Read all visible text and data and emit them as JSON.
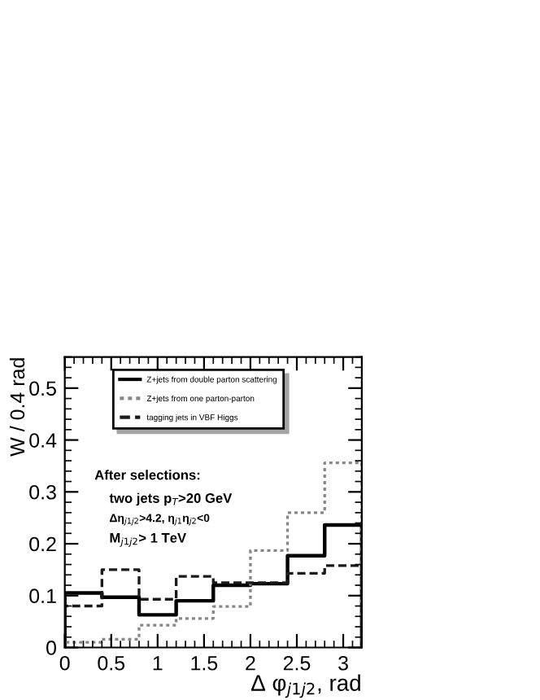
{
  "chart_data": {
    "type": "histogram",
    "xlabel": "Δ φ$_{j1j2}$, rad",
    "ylabel": "W / 0.4 rad",
    "bins": [
      0,
      0.4,
      0.8,
      1.2,
      1.6,
      2.0,
      2.4,
      2.8,
      3.2
    ],
    "series": [
      {
        "name": "Z+jets from double parton scattering",
        "color": "#000000",
        "line_style": "solid",
        "values": [
          0.105,
          0.097,
          0.063,
          0.09,
          0.12,
          0.123,
          0.177,
          0.236
        ]
      },
      {
        "name": "Z+jets from one parton-parton",
        "color": "#888888",
        "line_style": "dotted",
        "values": [
          0.01,
          0.016,
          0.043,
          0.056,
          0.079,
          0.187,
          0.26,
          0.356
        ]
      },
      {
        "name": "tagging jets in VBF Higgs",
        "color": "#1a1a1a",
        "line_style": "dashed",
        "values": [
          0.08,
          0.15,
          0.093,
          0.137,
          0.125,
          0.125,
          0.143,
          0.158
        ]
      }
    ],
    "xlim": [
      0,
      3.2
    ],
    "ylim": [
      0,
      0.56
    ],
    "xticks": [
      0,
      0.5,
      1,
      1.5,
      2,
      2.5,
      3
    ],
    "yticks": [
      0,
      0.1,
      0.2,
      0.3,
      0.4,
      0.5
    ],
    "legend": "top",
    "grid": false,
    "annotations": [
      "After selections:",
      "two jets p$_{T}$>20 GeV",
      "Δη$_{j1j2}$>4.2, η$_{j1}$η$_{j2}$<0",
      "M$_{j1j2}$> 1 TeV"
    ]
  }
}
